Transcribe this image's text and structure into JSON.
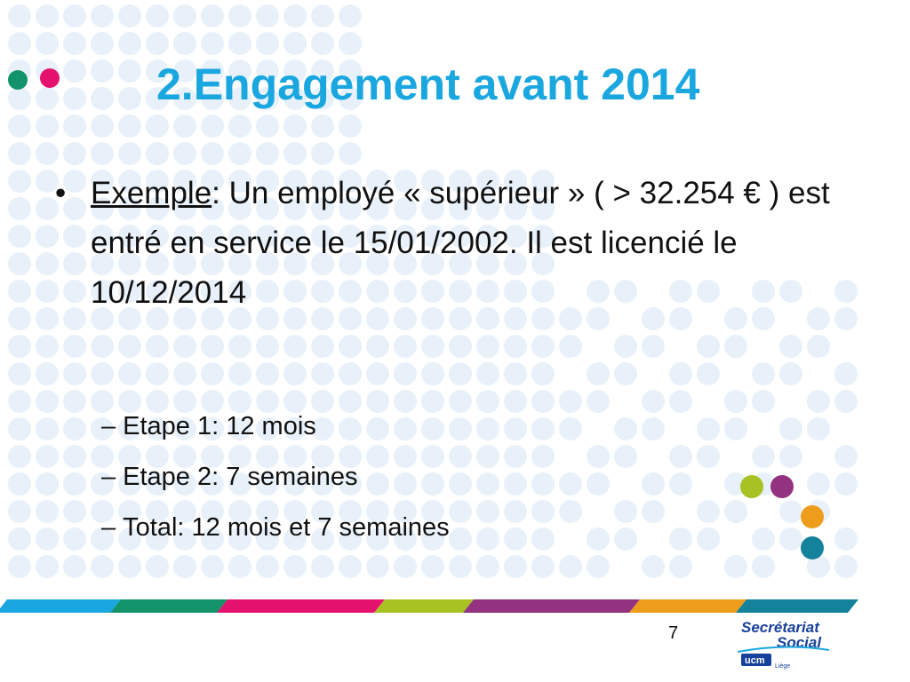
{
  "slide": {
    "title": "2.Engagement avant 2014",
    "bullet": {
      "marker": "•",
      "label": "Exemple",
      "text": ": Un employé « supérieur » ( > 32.254 € ) est entré en service le 15/01/2002. Il est licencié le 10/12/2014"
    },
    "sub_items": [
      {
        "dash": "–",
        "text": "Etape 1: 12 mois"
      },
      {
        "dash": "–",
        "text": "Etape 2: 7 semaines"
      },
      {
        "dash": "–",
        "text": "Total: 12 mois et 7 semaines"
      }
    ],
    "page_number": "7"
  },
  "logo": {
    "line1": "Secrétariat",
    "line2": "Social",
    "badge": "ucm",
    "city": "Liège"
  },
  "colors": {
    "title": "#1aa7e0",
    "dots_background": "#e8f1f9",
    "dot_green": "#13936a",
    "dot_pink": "#e4126e",
    "dot_lime": "#a8c224",
    "dot_purple": "#93327f",
    "dot_orange": "#ee9c1c",
    "dot_teal": "#13829a",
    "band_blue": "#1aa7e0",
    "band_green": "#13936a",
    "band_pink": "#e4126e",
    "band_lime": "#a8c224",
    "band_purple": "#93327f",
    "band_orange": "#ee9c1c",
    "band_teal": "#13829a"
  }
}
